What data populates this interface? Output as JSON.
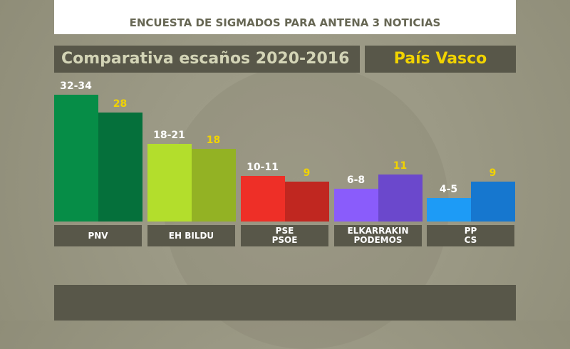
{
  "header": {
    "title": "ENCUESTA DE SIGMADOS PARA ANTENA 3 NOTICIAS",
    "subtitle": "Comparativa escaños 2020-2016",
    "region": "País Vasco"
  },
  "chart_data": {
    "type": "bar",
    "title": "Comparativa escaños 2020-2016",
    "categories": [
      "PNV",
      "EH BILDU",
      "PSE\nPSOE",
      "ELKARRAKIN\nPODEMOS",
      "PP\nCS"
    ],
    "series": [
      {
        "name": "2020",
        "labels": [
          "32-34",
          "18-21",
          "10-11",
          "6-8",
          "4-5"
        ],
        "values": [
          33,
          19.5,
          10.5,
          7,
          4.5
        ],
        "colors": [
          "#068d47",
          "#b3de2c",
          "#ee2f27",
          "#8a5cfb",
          "#1d9bf6"
        ],
        "label_color": "#ffffff"
      },
      {
        "name": "2016",
        "labels": [
          "28",
          "18",
          "9",
          "11",
          "9"
        ],
        "values": [
          28,
          18,
          9,
          11,
          9
        ],
        "colors": [
          "#05703b",
          "#93b224",
          "#c02720",
          "#6b48cc",
          "#1677cf"
        ],
        "label_color": "#f1d300"
      }
    ]
  }
}
